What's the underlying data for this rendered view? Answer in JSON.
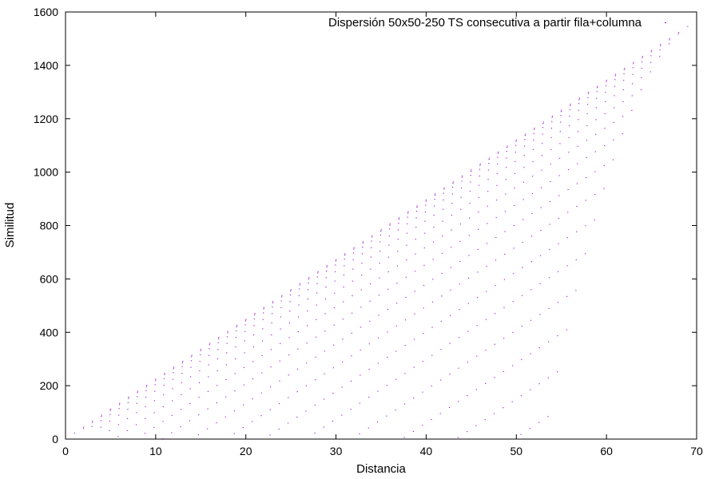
{
  "chart_data": {
    "type": "scatter",
    "title": "",
    "xlabel": "Distancia",
    "ylabel": "Similitud",
    "xlim": [
      0,
      70
    ],
    "ylim": [
      0,
      1600
    ],
    "x_ticks": [
      "0",
      "10",
      "20",
      "30",
      "40",
      "50",
      "60",
      "70"
    ],
    "y_ticks": [
      "0",
      "200",
      "400",
      "600",
      "800",
      "1000",
      "1200",
      "1400",
      "1600"
    ],
    "grid": false,
    "legend_position": "top-right",
    "series": [
      {
        "name": "Dispersión 50x50-250 TS consecutiva a partir fila+columna",
        "color": "#9400d3",
        "marker": "dot",
        "pattern": {
          "description_of_rule": "for d in 1..69, k in 0..min(d,25,70-d)-1: x = d - 0.033*k, y = 22.4*d - 5*k*k (approx.)",
          "d_min": 1,
          "d_max": 69,
          "top_slope": 22.4,
          "curve_coeff": 5,
          "max_layers": 25,
          "x_shift_per_layer": 0.033
        }
      }
    ]
  }
}
